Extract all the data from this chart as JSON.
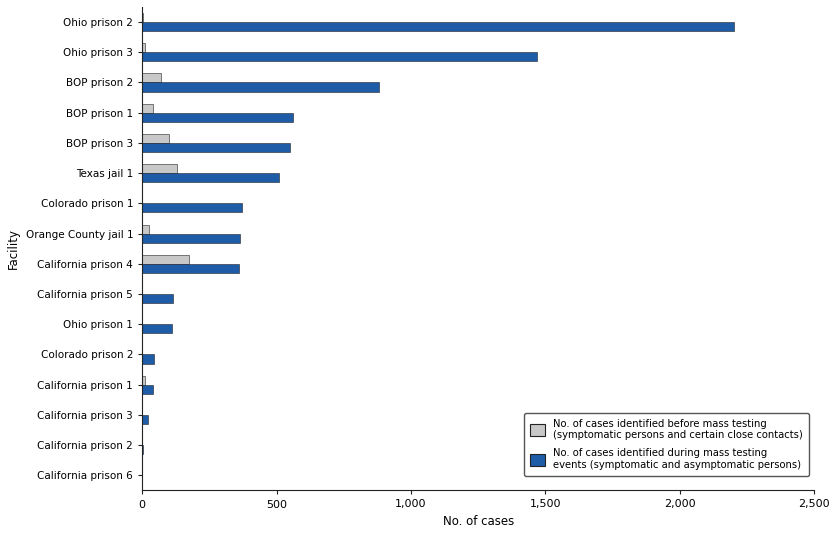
{
  "facilities": [
    "Ohio prison 2",
    "Ohio prison 3",
    "BOP prison 2",
    "BOP prison 1",
    "BOP prison 3",
    "Texas jail 1",
    "Colorado prison 1",
    "Orange County jail 1",
    "California prison 4",
    "California prison 5",
    "Ohio prison 1",
    "Colorado prison 2",
    "California prison 1",
    "California prison 3",
    "California prison 2",
    "California prison 6"
  ],
  "symptomatic_before": [
    5,
    10,
    70,
    40,
    100,
    130,
    0,
    25,
    175,
    0,
    0,
    0,
    10,
    0,
    0,
    0
  ],
  "mass_testing": [
    2200,
    1470,
    880,
    560,
    550,
    510,
    370,
    365,
    360,
    115,
    110,
    45,
    40,
    20,
    2,
    1
  ],
  "bar_color_symptomatic": "#c8c8c8",
  "bar_color_mass": "#1e5ca8",
  "bar_edge_color": "#222222",
  "ylabel": "Facility",
  "xlabel": "No. of cases",
  "xlim": [
    0,
    2500
  ],
  "xticks": [
    0,
    500,
    1000,
    1500,
    2000,
    2500
  ],
  "xtick_labels": [
    "0",
    "500",
    "1,000",
    "1,500",
    "2,000",
    "2,500"
  ],
  "legend_label_symptomatic": "No. of cases identified before mass testing\n(symptomatic persons and certain close contacts)",
  "legend_label_mass": "No. of cases identified during mass testing\nevents (symptomatic and asymptomatic persons)",
  "bar_height": 0.3,
  "background_color": "#ffffff"
}
